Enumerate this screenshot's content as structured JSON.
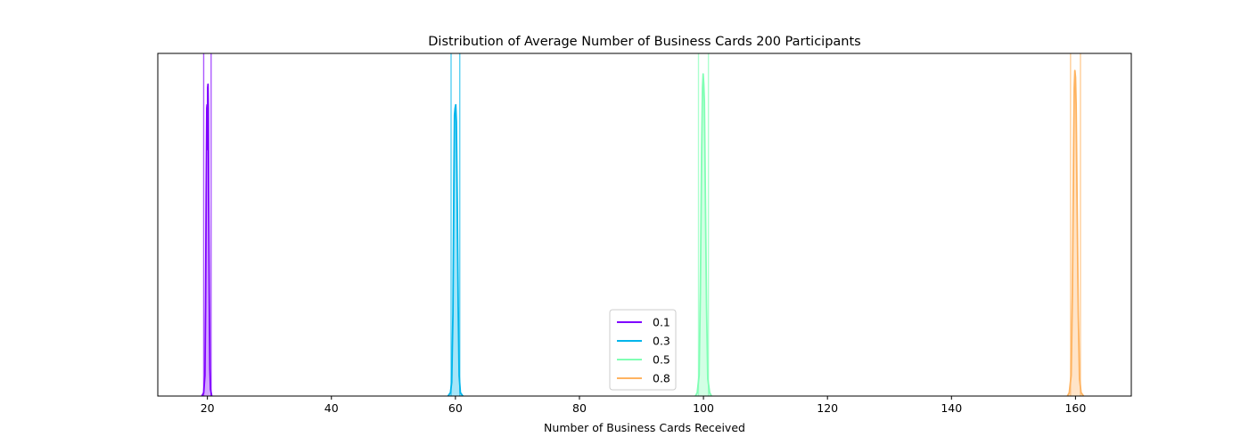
{
  "chart_data": {
    "type": "line",
    "title": "Distribution of Average Number of Business Cards 200 Participants",
    "xlabel": "Number of Business Cards Received",
    "ylabel": "",
    "xlim": [
      12,
      169
    ],
    "ylim": [
      0,
      1
    ],
    "x_ticks": [
      20,
      40,
      60,
      80,
      100,
      120,
      140,
      160
    ],
    "x_tick_labels": [
      "20",
      "40",
      "60",
      "80",
      "100",
      "120",
      "140",
      "160"
    ],
    "y_ticks_visible": false,
    "grid": false,
    "legend_position": "lower-center",
    "series": [
      {
        "name": "0.1",
        "color": "#7f00ff",
        "center": 20,
        "spread": 0.4,
        "peak": 0.91,
        "ci": [
          19.4,
          20.6
        ],
        "curve": [
          [
            19.1,
            0.0
          ],
          [
            19.4,
            0.01
          ],
          [
            19.6,
            0.06
          ],
          [
            19.7,
            0.26
          ],
          [
            19.8,
            0.58
          ],
          [
            19.9,
            0.84
          ],
          [
            19.95,
            0.85
          ],
          [
            20.0,
            0.72
          ],
          [
            20.05,
            0.9
          ],
          [
            20.1,
            0.91
          ],
          [
            20.15,
            0.84
          ],
          [
            20.2,
            0.6
          ],
          [
            20.3,
            0.3
          ],
          [
            20.4,
            0.08
          ],
          [
            20.5,
            0.02
          ],
          [
            20.7,
            0.0
          ]
        ]
      },
      {
        "name": "0.3",
        "color": "#00b5eb",
        "center": 60,
        "spread": 0.5,
        "peak": 0.85,
        "ci": [
          59.3,
          60.7
        ],
        "curve": [
          [
            58.8,
            0.0
          ],
          [
            59.2,
            0.01
          ],
          [
            59.4,
            0.04
          ],
          [
            59.6,
            0.24
          ],
          [
            59.75,
            0.62
          ],
          [
            59.85,
            0.82
          ],
          [
            59.95,
            0.84
          ],
          [
            60.05,
            0.85
          ],
          [
            60.15,
            0.8
          ],
          [
            60.3,
            0.55
          ],
          [
            60.45,
            0.26
          ],
          [
            60.6,
            0.06
          ],
          [
            60.8,
            0.01
          ],
          [
            61.2,
            0.0
          ]
        ]
      },
      {
        "name": "0.5",
        "color": "#80ffb4",
        "center": 100,
        "spread": 0.6,
        "peak": 0.94,
        "ci": [
          99.2,
          100.8
        ],
        "curve": [
          [
            98.7,
            0.0
          ],
          [
            99.0,
            0.01
          ],
          [
            99.3,
            0.06
          ],
          [
            99.5,
            0.3
          ],
          [
            99.7,
            0.7
          ],
          [
            99.85,
            0.9
          ],
          [
            99.95,
            0.94
          ],
          [
            100.05,
            0.91
          ],
          [
            100.15,
            0.86
          ],
          [
            100.3,
            0.6
          ],
          [
            100.5,
            0.26
          ],
          [
            100.7,
            0.05
          ],
          [
            101.0,
            0.01
          ],
          [
            101.3,
            0.0
          ]
        ]
      },
      {
        "name": "0.8",
        "color": "#ffb360",
        "center": 160,
        "spread": 0.55,
        "peak": 0.95,
        "ci": [
          159.2,
          160.8
        ],
        "curve": [
          [
            158.7,
            0.0
          ],
          [
            159.0,
            0.01
          ],
          [
            159.3,
            0.06
          ],
          [
            159.5,
            0.3
          ],
          [
            159.7,
            0.72
          ],
          [
            159.8,
            0.9
          ],
          [
            159.9,
            0.95
          ],
          [
            160.0,
            0.93
          ],
          [
            160.1,
            0.85
          ],
          [
            160.25,
            0.58
          ],
          [
            160.45,
            0.24
          ],
          [
            160.65,
            0.05
          ],
          [
            160.9,
            0.01
          ],
          [
            161.3,
            0.0
          ]
        ]
      }
    ]
  }
}
